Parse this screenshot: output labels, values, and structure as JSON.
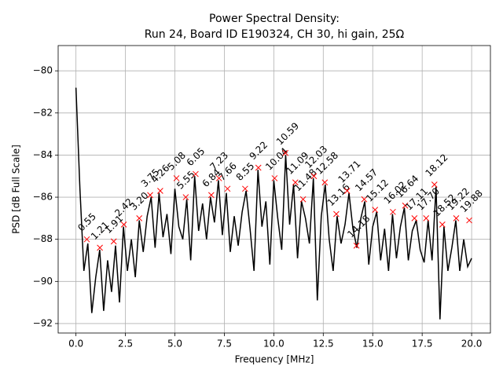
{
  "chart_data": {
    "type": "line",
    "title": "Power Spectral Density:",
    "subtitle": "Run 24, Board ID E190324, CH 30, hi gain, 25Ω",
    "x_label": "Frequency [MHz]",
    "y_label": "PSD [dB Full Scale]",
    "xlim": [
      -0.9,
      20.95
    ],
    "ylim": [
      -92.45,
      -78.8
    ],
    "xticks": [
      {
        "value": 0,
        "label": "0.0"
      },
      2.5,
      {
        "value": 5,
        "label": "5.0"
      },
      7.5,
      {
        "value": 10,
        "label": "10.0"
      },
      12.5,
      {
        "value": 15,
        "label": "15.0"
      },
      17.5,
      {
        "value": 20,
        "label": "20.0"
      }
    ],
    "yticks": [
      {
        "value": -80,
        "label": "−80"
      },
      {
        "value": -82,
        "label": "−82"
      },
      {
        "value": -84,
        "label": "−84"
      },
      {
        "value": -86,
        "label": "−86"
      },
      {
        "value": -88,
        "label": "−88"
      },
      {
        "value": -90,
        "label": "−90"
      },
      {
        "value": -92,
        "label": "−92"
      }
    ],
    "grid": true,
    "line": {
      "color": "#000000",
      "x": [
        0,
        0.2,
        0.4,
        0.6,
        0.8,
        1.0,
        1.2,
        1.4,
        1.6,
        1.8,
        2.0,
        2.2,
        2.4,
        2.6,
        2.8,
        3.0,
        3.2,
        3.4,
        3.6,
        3.8,
        4.0,
        4.2,
        4.4,
        4.6,
        4.8,
        5.0,
        5.2,
        5.4,
        5.6,
        5.8,
        6.0,
        6.2,
        6.4,
        6.6,
        6.8,
        7.0,
        7.2,
        7.4,
        7.6,
        7.8,
        8.0,
        8.2,
        8.4,
        8.6,
        8.8,
        9.0,
        9.2,
        9.4,
        9.6,
        9.8,
        10.0,
        10.2,
        10.4,
        10.6,
        10.8,
        11.0,
        11.2,
        11.4,
        11.6,
        11.8,
        12.0,
        12.2,
        12.4,
        12.6,
        12.8,
        13.0,
        13.2,
        13.4,
        13.6,
        13.8,
        14.0,
        14.2,
        14.4,
        14.6,
        14.8,
        15.0,
        15.2,
        15.4,
        15.6,
        15.8,
        16.0,
        16.2,
        16.4,
        16.6,
        16.8,
        17.0,
        17.2,
        17.4,
        17.6,
        17.8,
        18.0,
        18.2,
        18.4,
        18.6,
        18.8,
        19.0,
        19.2,
        19.4,
        19.6,
        19.8,
        20.0
      ],
      "values": [
        -80.8,
        -85.6,
        -89.5,
        -88.2,
        -91.5,
        -89.8,
        -88.5,
        -91.4,
        -89.0,
        -90.5,
        -88.3,
        -91.0,
        -87.4,
        -89.5,
        -88.0,
        -89.8,
        -87.1,
        -88.6,
        -86.9,
        -86.0,
        -88.4,
        -85.8,
        -87.9,
        -86.8,
        -88.7,
        -85.6,
        -87.4,
        -88.0,
        -86.1,
        -89.0,
        -85.0,
        -87.6,
        -86.3,
        -88.0,
        -86.0,
        -87.2,
        -85.2,
        -87.8,
        -85.8,
        -88.6,
        -86.9,
        -88.3,
        -86.7,
        -85.7,
        -87.5,
        -89.5,
        -84.7,
        -87.4,
        -86.2,
        -89.2,
        -85.2,
        -87.0,
        -88.5,
        -84.0,
        -87.3,
        -85.4,
        -88.9,
        -86.2,
        -87.0,
        -88.2,
        -85.1,
        -90.9,
        -86.9,
        -85.4,
        -88.0,
        -89.5,
        -86.9,
        -88.2,
        -87.3,
        -85.8,
        -87.5,
        -88.4,
        -87.0,
        -86.2,
        -89.2,
        -87.4,
        -86.7,
        -89.0,
        -87.5,
        -89.5,
        -86.8,
        -88.9,
        -87.4,
        -86.5,
        -89.0,
        -87.6,
        -87.1,
        -88.5,
        -89.1,
        -87.1,
        -89.0,
        -85.5,
        -91.8,
        -87.4,
        -89.5,
        -88.4,
        -87.1,
        -89.5,
        -88.0,
        -89.3,
        -88.9
      ]
    },
    "peaks": {
      "color": "#ff0000",
      "x": [
        0.55,
        1.21,
        1.91,
        2.42,
        3.2,
        3.75,
        4.26,
        5.08,
        5.55,
        6.05,
        6.84,
        7.23,
        7.66,
        8.55,
        9.22,
        10.04,
        10.59,
        11.09,
        11.48,
        12.03,
        12.58,
        13.16,
        13.71,
        14.18,
        14.57,
        15.12,
        16.02,
        16.64,
        17.11,
        17.7,
        18.12,
        18.52,
        19.22,
        19.88
      ],
      "values": [
        -88.0,
        -88.4,
        -88.1,
        -87.3,
        -87.0,
        -85.9,
        -85.7,
        -85.1,
        -86.0,
        -84.9,
        -85.9,
        -85.1,
        -85.6,
        -85.6,
        -84.6,
        -85.1,
        -83.9,
        -85.3,
        -86.1,
        -85.0,
        -85.3,
        -86.8,
        -85.7,
        -88.3,
        -86.1,
        -86.6,
        -86.7,
        -86.4,
        -87.0,
        -87.0,
        -85.4,
        -87.3,
        -87.0,
        -87.1
      ],
      "labels": [
        "0.55",
        "1.21",
        "1.91",
        "2.42",
        "3.20",
        "3.75",
        "4.26",
        "5.08",
        "5.55",
        "6.05",
        "6.84",
        "7.23",
        "7.66",
        "8.55",
        "9.22",
        "10.04",
        "10.59",
        "11.09",
        "11.48",
        "12.03",
        "12.58",
        "13.16",
        "13.71",
        "14.18",
        "14.57",
        "15.12",
        "16.02",
        "16.64",
        "17.11",
        "17.70",
        "18.12",
        "18.52",
        "19.22",
        "19.88"
      ]
    }
  }
}
